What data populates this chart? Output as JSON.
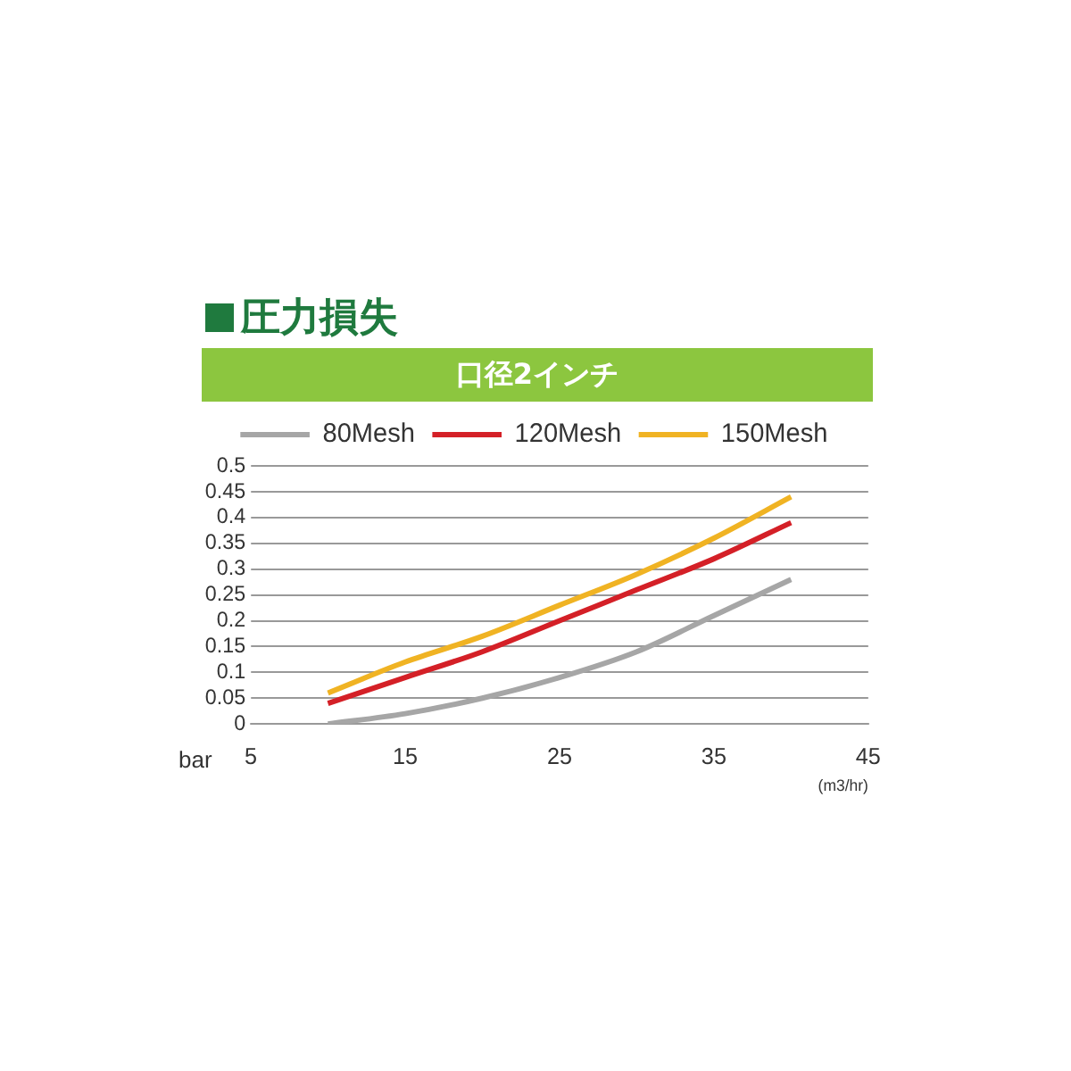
{
  "chart_data": {
    "type": "line",
    "title": "圧力損失",
    "subtitle": "口径2インチ",
    "xlabel": "(m3/hr)",
    "ylabel": "bar",
    "x": [
      10,
      15,
      20,
      25,
      30,
      35,
      40
    ],
    "series": [
      {
        "name": "80Mesh",
        "color": "#a6a6a6",
        "values": [
          0,
          0.02,
          0.05,
          0.09,
          0.14,
          0.21,
          0.28
        ]
      },
      {
        "name": "120Mesh",
        "color": "#d42027",
        "values": [
          0.04,
          0.09,
          0.14,
          0.2,
          0.26,
          0.32,
          0.39
        ]
      },
      {
        "name": "150Mesh",
        "color": "#f0b323",
        "values": [
          0.06,
          0.12,
          0.17,
          0.23,
          0.29,
          0.36,
          0.44
        ]
      }
    ],
    "xlim": [
      5,
      45
    ],
    "xticks": [
      5,
      15,
      25,
      35,
      45
    ],
    "ylim": [
      0,
      0.5
    ],
    "yticks": [
      0,
      0.05,
      0.1,
      0.15,
      0.2,
      0.25,
      0.3,
      0.35,
      0.4,
      0.45,
      0.5
    ],
    "grid": "y",
    "legend": "top",
    "marker": "none",
    "line_style": "solid"
  }
}
